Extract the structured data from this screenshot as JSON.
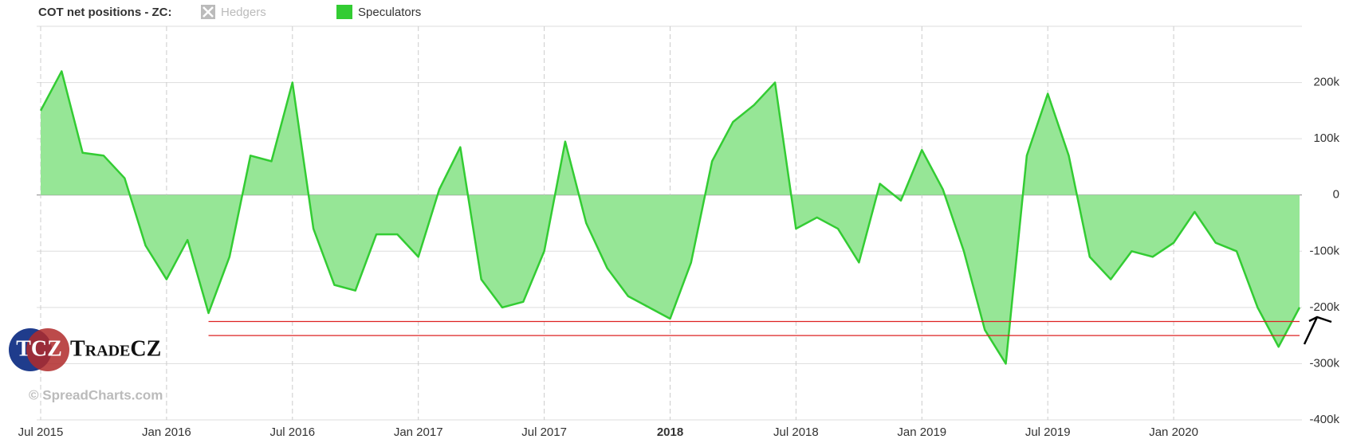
{
  "chart_data": {
    "type": "area",
    "title": "COT net positions - ZC:",
    "hidden_series": [
      {
        "name": "Hedgers",
        "color": "#bbbbbb"
      }
    ],
    "x": [
      "2015-07",
      "2015-08",
      "2015-09",
      "2015-10",
      "2015-11",
      "2015-12",
      "2016-01",
      "2016-02",
      "2016-03",
      "2016-04",
      "2016-05",
      "2016-06",
      "2016-07",
      "2016-08",
      "2016-09",
      "2016-10",
      "2016-11",
      "2016-12",
      "2017-01",
      "2017-02",
      "2017-03",
      "2017-04",
      "2017-05",
      "2017-06",
      "2017-07",
      "2017-08",
      "2017-09",
      "2017-10",
      "2017-11",
      "2017-12",
      "2018-01",
      "2018-02",
      "2018-03",
      "2018-04",
      "2018-05",
      "2018-06",
      "2018-07",
      "2018-08",
      "2018-09",
      "2018-10",
      "2018-11",
      "2018-12",
      "2019-01",
      "2019-02",
      "2019-03",
      "2019-04",
      "2019-05",
      "2019-06",
      "2019-07",
      "2019-08",
      "2019-09",
      "2019-10",
      "2019-11",
      "2019-12",
      "2020-01",
      "2020-02",
      "2020-03",
      "2020-04",
      "2020-05",
      "2020-06",
      "2020-07"
    ],
    "series": [
      {
        "name": "Speculators",
        "color": "#33cc33",
        "fill": "#96e696",
        "values": [
          150000,
          220000,
          75000,
          70000,
          30000,
          -90000,
          -150000,
          -80000,
          -210000,
          -110000,
          70000,
          60000,
          200000,
          -60000,
          -160000,
          -170000,
          -70000,
          -70000,
          -110000,
          10000,
          85000,
          -150000,
          -200000,
          -190000,
          -100000,
          95000,
          -50000,
          -130000,
          -180000,
          -200000,
          -220000,
          -120000,
          60000,
          130000,
          160000,
          200000,
          -60000,
          -40000,
          -60000,
          -120000,
          20000,
          -10000,
          80000,
          10000,
          -100000,
          -240000,
          -300000,
          70000,
          180000,
          70000,
          -110000,
          -150000,
          -100000,
          -110000,
          -85000,
          -30000,
          -85000,
          -100000,
          -200000,
          -270000,
          -200000
        ]
      }
    ],
    "ylim": [
      -400000,
      300000
    ],
    "yticks": [
      {
        "value": -400000,
        "label": "-400k"
      },
      {
        "value": -300000,
        "label": "-300k"
      },
      {
        "value": -200000,
        "label": "-200k"
      },
      {
        "value": -100000,
        "label": "-100k"
      },
      0,
      {
        "value": 100000,
        "label": "100k"
      },
      {
        "value": 200000,
        "label": "200k"
      }
    ],
    "xticks": [
      {
        "value": "2015-07",
        "label": "Jul 2015"
      },
      {
        "value": "2016-01",
        "label": "Jan 2016"
      },
      {
        "value": "2016-07",
        "label": "Jul 2016"
      },
      {
        "value": "2017-01",
        "label": "Jan 2017"
      },
      {
        "value": "2017-07",
        "label": "Jul 2017"
      },
      {
        "value": "2018-01",
        "label": "2018"
      },
      {
        "value": "2018-07",
        "label": "Jul 2018"
      },
      {
        "value": "2019-01",
        "label": "Jan 2019"
      },
      {
        "value": "2019-07",
        "label": "Jul 2019"
      },
      {
        "value": "2020-01",
        "label": "Jan 2020"
      }
    ],
    "grid": true,
    "annotations": [
      {
        "y": -225000,
        "from": "2016-03",
        "to": "2020-07",
        "color": "#dd2222"
      },
      {
        "y": -250000,
        "from": "2016-03",
        "to": "2020-07",
        "color": "#dd2222"
      }
    ],
    "logo": {
      "badge": "TCZ",
      "name": "TradeCZ"
    },
    "credit": "© SpreadCharts.com"
  }
}
